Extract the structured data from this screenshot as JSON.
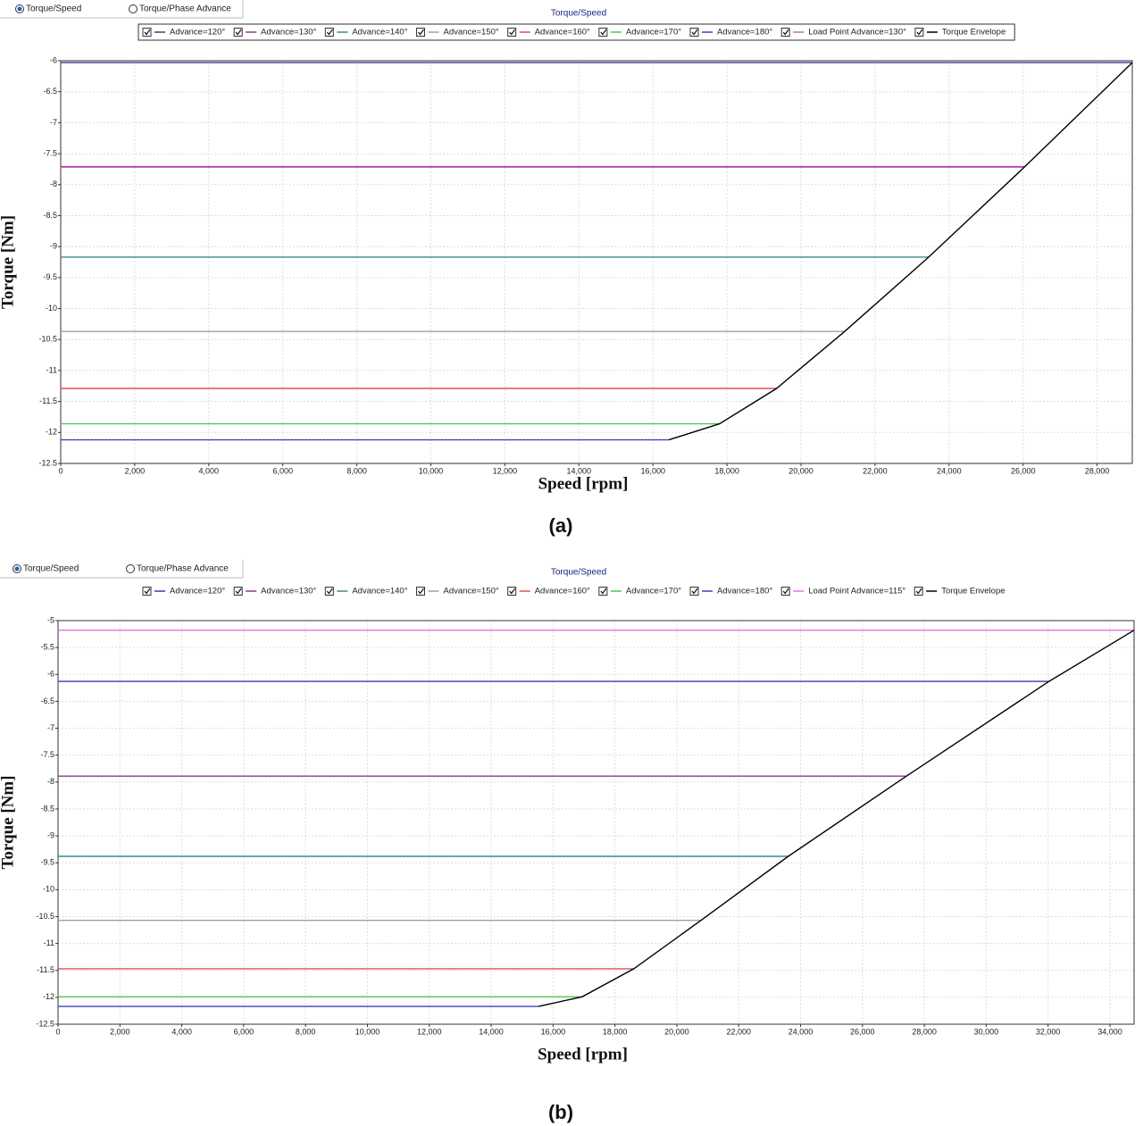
{
  "chart_data": [
    {
      "type": "line",
      "tabs": [
        "Torque/Speed",
        "Torque/Phase Advance"
      ],
      "selected_tab": 0,
      "title": "Torque/Speed",
      "x_label": "Speed [rpm]",
      "y_label": "Torque [Nm]",
      "caption": "(a)",
      "legend_frame": true,
      "grid": true,
      "xlim": [
        0,
        28950
      ],
      "ylim": [
        -12.5,
        -6
      ],
      "xticks": [
        0,
        {
          "value": 2000,
          "label": "2,000"
        },
        {
          "value": 4000,
          "label": "4,000"
        },
        {
          "value": 6000,
          "label": "6,000"
        },
        {
          "value": 8000,
          "label": "8,000"
        },
        {
          "value": 10000,
          "label": "10,000"
        },
        {
          "value": 12000,
          "label": "12,000"
        },
        {
          "value": 14000,
          "label": "14,000"
        },
        {
          "value": 16000,
          "label": "16,000"
        },
        {
          "value": 18000,
          "label": "18,000"
        },
        {
          "value": 20000,
          "label": "20,000"
        },
        {
          "value": 22000,
          "label": "22,000"
        },
        {
          "value": 24000,
          "label": "24,000"
        },
        {
          "value": 26000,
          "label": "26,000"
        },
        {
          "value": 28000,
          "label": "28,000"
        }
      ],
      "yticks": [
        -12.5,
        -12,
        -11.5,
        -11,
        -10.5,
        -10,
        -9.5,
        -9,
        -8.5,
        -8,
        -7.5,
        -7,
        -6.5,
        -6
      ],
      "series": [
        {
          "name": "Advance=120°",
          "color": "#3c3c9a",
          "x": [
            0,
            28950
          ],
          "values": [
            -6.03,
            -6.03
          ]
        },
        {
          "name": "Advance=130°",
          "color": "#8b3a8b",
          "x": [
            0,
            26030
          ],
          "values": [
            -7.71,
            -7.71
          ]
        },
        {
          "name": "Advance=140°",
          "color": "#3a8a8a",
          "x": [
            0,
            23450
          ],
          "values": [
            -9.17,
            -9.17
          ]
        },
        {
          "name": "Advance=150°",
          "color": "#a0a0a0",
          "x": [
            0,
            21180
          ],
          "values": [
            -10.37,
            -10.37
          ]
        },
        {
          "name": "Advance=160°",
          "color": "#e05050",
          "x": [
            0,
            19340
          ],
          "values": [
            -11.29,
            -11.29
          ]
        },
        {
          "name": "Advance=170°",
          "color": "#50c850",
          "x": [
            0,
            17800
          ],
          "values": [
            -11.86,
            -11.86
          ]
        },
        {
          "name": "Advance=180°",
          "color": "#4040c0",
          "x": [
            0,
            16430
          ],
          "values": [
            -12.12,
            -12.12
          ]
        },
        {
          "name": "Load Point Advance=130°",
          "color": "#d060d0",
          "x": [
            0,
            26030
          ],
          "values": [
            -7.72,
            -7.72
          ]
        },
        {
          "name": "Torque Envelope",
          "color": "#000000",
          "x": [
            16430,
            17800,
            19340,
            21180,
            23450,
            26030,
            28950
          ],
          "values": [
            -12.12,
            -11.86,
            -11.29,
            -10.37,
            -9.17,
            -7.72,
            -6.03
          ]
        }
      ]
    },
    {
      "type": "line",
      "tabs": [
        "Torque/Speed",
        "Torque/Phase Advance"
      ],
      "selected_tab": 0,
      "title": "Torque/Speed",
      "x_label": "Speed [rpm]",
      "y_label": "Torque [Nm]",
      "caption": "(b)",
      "legend_frame": false,
      "grid": true,
      "xlim": [
        0,
        34780
      ],
      "ylim": [
        -12.5,
        -5
      ],
      "xticks": [
        0,
        {
          "value": 2000,
          "label": "2,000"
        },
        {
          "value": 4000,
          "label": "4,000"
        },
        {
          "value": 6000,
          "label": "6,000"
        },
        {
          "value": 8000,
          "label": "8,000"
        },
        {
          "value": 10000,
          "label": "10,000"
        },
        {
          "value": 12000,
          "label": "12,000"
        },
        {
          "value": 14000,
          "label": "14,000"
        },
        {
          "value": 16000,
          "label": "16,000"
        },
        {
          "value": 18000,
          "label": "18,000"
        },
        {
          "value": 20000,
          "label": "20,000"
        },
        {
          "value": 22000,
          "label": "22,000"
        },
        {
          "value": 24000,
          "label": "24,000"
        },
        {
          "value": 26000,
          "label": "26,000"
        },
        {
          "value": 28000,
          "label": "28,000"
        },
        {
          "value": 30000,
          "label": "30,000"
        },
        {
          "value": 32000,
          "label": "32,000"
        },
        {
          "value": 34000,
          "label": "34,000"
        }
      ],
      "yticks": [
        -12.5,
        -12,
        -11.5,
        -11,
        -10.5,
        -10,
        -9.5,
        -9,
        -8.5,
        -8,
        -7.5,
        -7,
        -6.5,
        -6,
        -5.5,
        -5
      ],
      "series": [
        {
          "name": "Advance=120°",
          "color": "#3c3c9a",
          "x": [
            0,
            32030
          ],
          "values": [
            -6.13,
            -6.13
          ]
        },
        {
          "name": "Advance=130°",
          "color": "#8b3a8b",
          "x": [
            0,
            27420
          ],
          "values": [
            -7.89,
            -7.89
          ]
        },
        {
          "name": "Advance=140°",
          "color": "#3a8a8a",
          "x": [
            0,
            23600
          ],
          "values": [
            -9.38,
            -9.38
          ]
        },
        {
          "name": "Advance=150°",
          "color": "#a0a0a0",
          "x": [
            0,
            20780
          ],
          "values": [
            -10.57,
            -10.57
          ]
        },
        {
          "name": "Advance=160°",
          "color": "#e05050",
          "x": [
            0,
            18610
          ],
          "values": [
            -11.47,
            -11.47
          ]
        },
        {
          "name": "Advance=170°",
          "color": "#50c850",
          "x": [
            0,
            16940
          ],
          "values": [
            -11.99,
            -11.99
          ]
        },
        {
          "name": "Advance=180°",
          "color": "#4040c0",
          "x": [
            0,
            15530
          ],
          "values": [
            -12.17,
            -12.17
          ]
        },
        {
          "name": "Load Point Advance=115°",
          "color": "#e070e0",
          "x": [
            0,
            34780
          ],
          "values": [
            -5.18,
            -5.18
          ]
        },
        {
          "name": "Torque Envelope",
          "color": "#000000",
          "x": [
            15530,
            16940,
            18610,
            20780,
            23600,
            27420,
            32030,
            34780
          ],
          "values": [
            -12.17,
            -11.99,
            -11.47,
            -10.57,
            -9.38,
            -7.89,
            -6.13,
            -5.18
          ]
        }
      ]
    }
  ]
}
